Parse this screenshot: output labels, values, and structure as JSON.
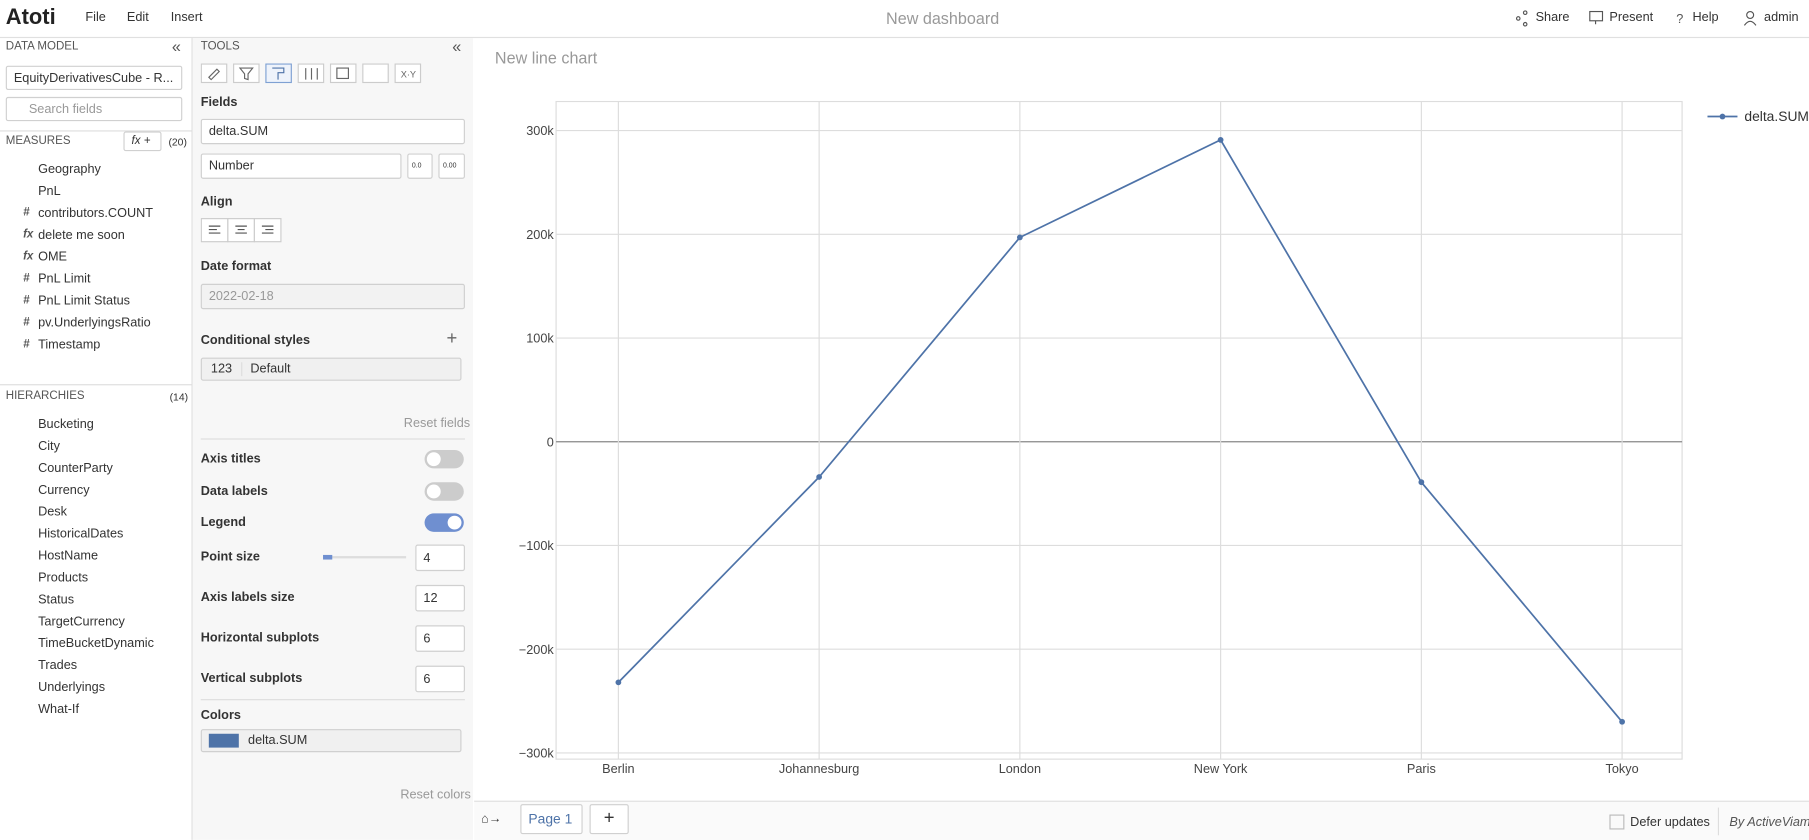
{
  "header": {
    "logo": "Atoti",
    "menu": [
      "File",
      "Edit",
      "Insert"
    ],
    "title": "New dashboard",
    "actions": [
      "Share",
      "Present",
      "Help",
      "admin"
    ]
  },
  "data_model": {
    "title": "DATA MODEL",
    "cube": "EquityDerivativesCube - R...",
    "search": "Search fields",
    "measures_title": "MEASURES",
    "measures_button": "fx +",
    "measures_count": "(20)",
    "measures": [
      {
        "label": "Geography",
        "folder": true
      },
      {
        "label": "PnL",
        "folder": true
      },
      {
        "label": "contributors.COUNT",
        "icon": "#"
      },
      {
        "label": "delete me soon",
        "icon": "fx"
      },
      {
        "label": "OME",
        "icon": "fx"
      },
      {
        "label": "PnL Limit",
        "icon": "#"
      },
      {
        "label": "PnL Limit Status",
        "icon": "#"
      },
      {
        "label": "pv.UnderlyingsRatio",
        "icon": "#"
      },
      {
        "label": "Timestamp",
        "icon": "#"
      }
    ],
    "hierarchies_title": "HIERARCHIES",
    "hierarchies_count": "(14)",
    "hierarchies": [
      {
        "label": "Bucketing",
        "folder": true,
        "expandable": true
      },
      {
        "label": "City",
        "expandable": false
      },
      {
        "label": "CounterParty",
        "expandable": true
      },
      {
        "label": "Currency",
        "expandable": false
      },
      {
        "label": "Desk",
        "expandable": true
      },
      {
        "label": "HistoricalDates",
        "expandable": false
      },
      {
        "label": "HostName",
        "expandable": false
      },
      {
        "label": "Products",
        "expandable": true
      },
      {
        "label": "Status",
        "expandable": true
      },
      {
        "label": "TargetCurrency",
        "expandable": false
      },
      {
        "label": "TimeBucketDynamic",
        "expandable": false
      },
      {
        "label": "Trades",
        "expandable": false
      },
      {
        "label": "Underlyings",
        "expandable": true
      },
      {
        "label": "What-If",
        "expandable": true
      }
    ]
  },
  "tools": {
    "title": "TOOLS",
    "tab_xy": "X·Y",
    "fields_label": "Fields",
    "field": "delta.SUM",
    "format": "Number",
    "format_btn1": "0.0",
    "format_btn2": "0.00",
    "align_label": "Align",
    "date_label": "Date format",
    "date_value": "2022-02-18",
    "cond_label": "Conditional styles",
    "cond_badge": "123",
    "cond_value": "Default",
    "reset_fields": "Reset fields",
    "toggles": [
      {
        "label": "Axis titles",
        "on": false
      },
      {
        "label": "Data labels",
        "on": false
      },
      {
        "label": "Legend",
        "on": true
      }
    ],
    "inputs": [
      {
        "label": "Point size",
        "value": 4
      },
      {
        "label": "Axis labels size",
        "value": 12
      },
      {
        "label": "Horizontal subplots",
        "value": 6
      },
      {
        "label": "Vertical subplots",
        "value": 6
      }
    ],
    "colors_label": "Colors",
    "color_series": "delta.SUM",
    "color_value": "#4e73a8",
    "reset_colors": "Reset colors"
  },
  "footer": {
    "page": "Page 1",
    "add": "+",
    "defer": "Defer updates",
    "brand": "By ActiveViam"
  },
  "chart_data": {
    "type": "line",
    "title": "New line chart",
    "categories": [
      "Berlin",
      "Johannesburg",
      "London",
      "New York",
      "Paris",
      "Tokyo"
    ],
    "series": [
      {
        "name": "delta.SUM",
        "color": "#4e73a8",
        "values": [
          -232000,
          -34000,
          197000,
          291000,
          -39000,
          -270000
        ]
      }
    ],
    "ylim": [
      -306000,
      328000
    ],
    "yticks": [
      {
        "value": -300000,
        "label": "−300k"
      },
      {
        "value": -200000,
        "label": "−200k"
      },
      {
        "value": -100000,
        "label": "−100k"
      },
      0,
      {
        "value": 100000,
        "label": "100k"
      },
      {
        "value": 200000,
        "label": "200k"
      },
      {
        "value": 300000,
        "label": "300k"
      }
    ],
    "grid": true,
    "legend": "top-right"
  }
}
